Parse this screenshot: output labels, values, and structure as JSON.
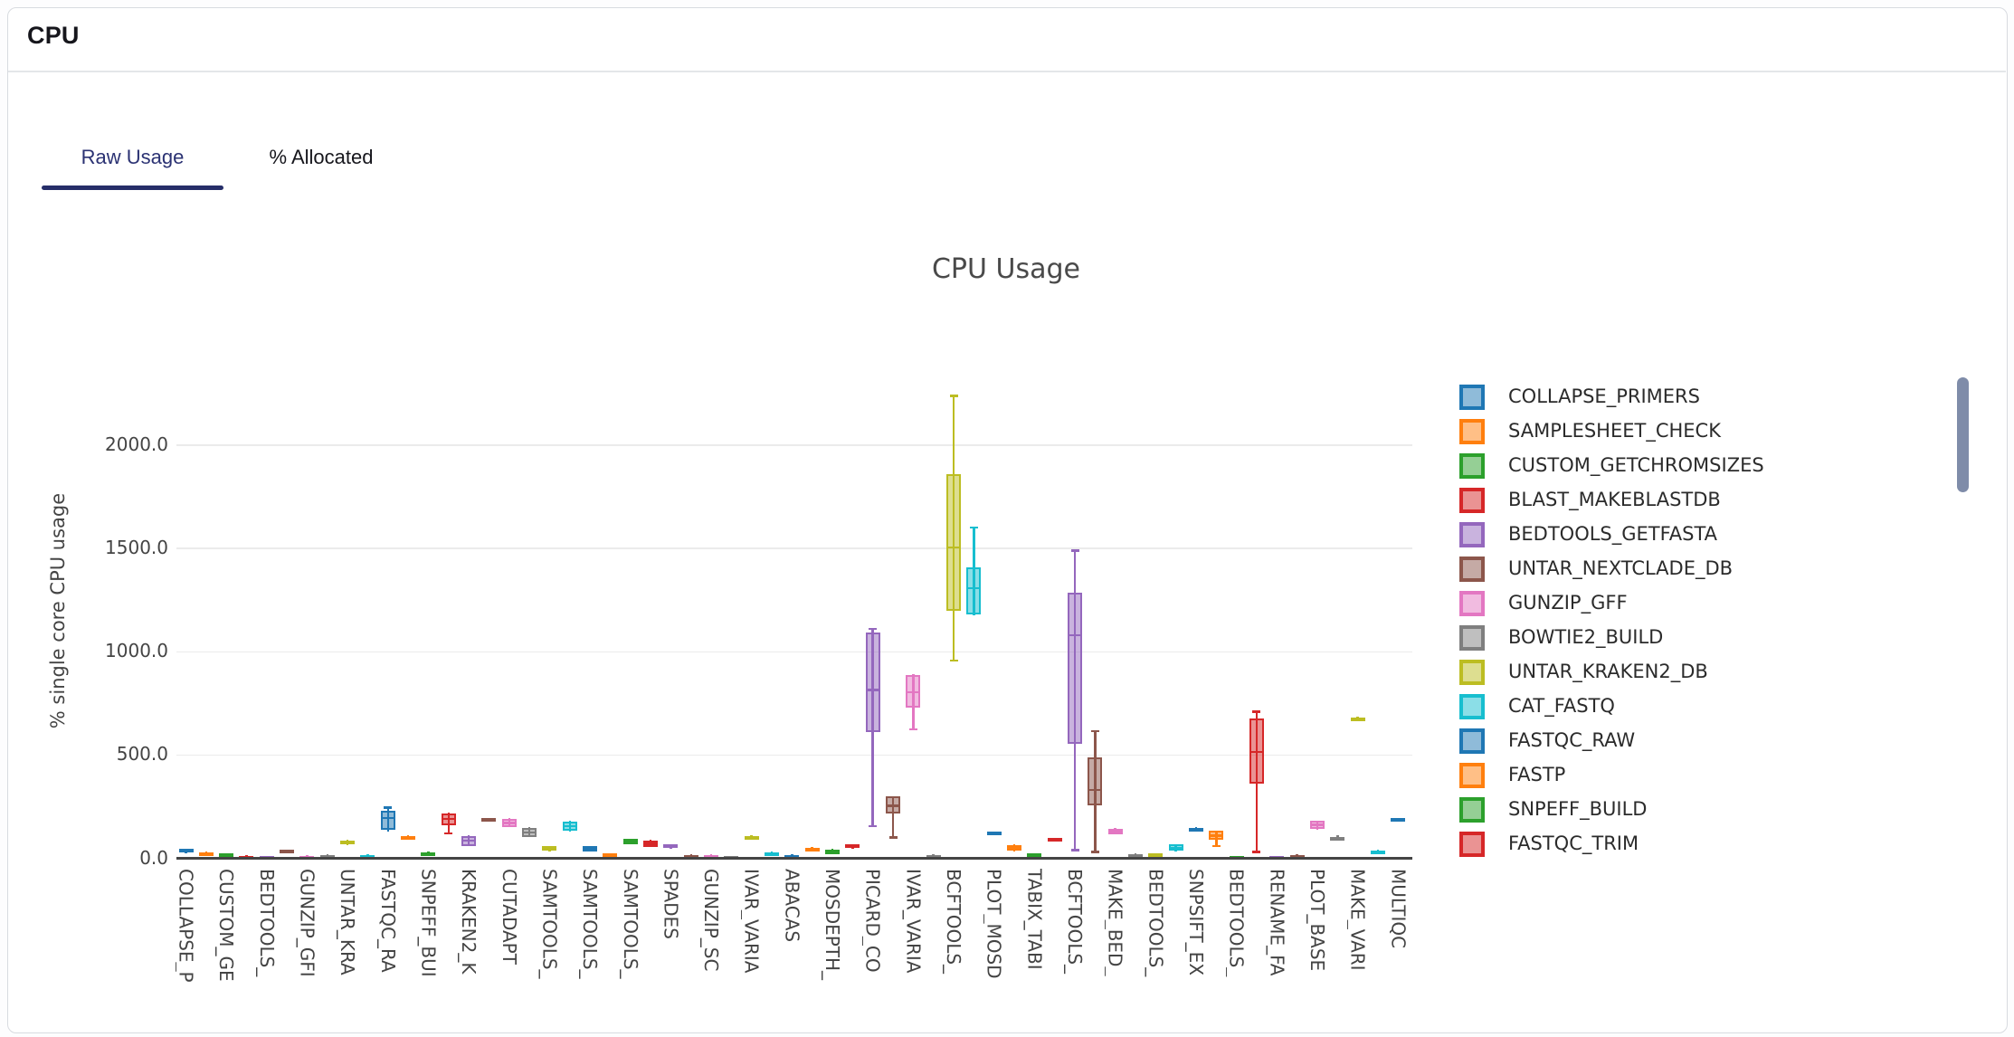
{
  "card": {
    "title": "CPU"
  },
  "tabs": [
    {
      "label": "Raw Usage",
      "active": true
    },
    {
      "label": "% Allocated",
      "active": false
    }
  ],
  "accent_color": "#262e69",
  "chart_data": {
    "type": "box",
    "title": "CPU Usage",
    "ylabel": "% single core CPU usage",
    "ylim": [
      0,
      2500
    ],
    "grid": true,
    "legend_position": "right",
    "yticks": {
      "values": [
        0,
        500,
        1000,
        1500,
        2000
      ],
      "labels": [
        "0.0",
        "500.0",
        "1000.0",
        "1500.0",
        "2000.0"
      ]
    },
    "x_tick_labels": [
      "COLLAPSE_P",
      "CUSTOM_GE",
      "BEDTOOLS_",
      "GUNZIP_GFI",
      "UNTAR_KRA",
      "FASTQC_RA",
      "SNPEFF_BUI",
      "KRAKEN2_K",
      "CUTADAPT",
      "SAMTOOLS_",
      "SAMTOOLS_",
      "SAMTOOLS_",
      "SPADES",
      "GUNZIP_SC",
      "IVAR_VARIA",
      "ABACAS",
      "MOSDEPTH_",
      "PICARD_CO",
      "IVAR_VARIA",
      "BCFTOOLS_",
      "PLOT_MOSD",
      "TABIX_TABI",
      "BCFTOOLS_",
      "MAKE_BED_",
      "BEDTOOLS_",
      "SNPSIFT_EX",
      "BEDTOOLS_",
      "RENAME_FA",
      "PLOT_BASE",
      "MAKE_VARI",
      "MULTIQC"
    ],
    "palette": [
      "#1f77b4",
      "#ff7f0e",
      "#2ca02c",
      "#d62728",
      "#9467bd",
      "#8c564b",
      "#e377c2",
      "#7f7f7f",
      "#bcbd22",
      "#17becf"
    ],
    "legend": [
      {
        "label": "COLLAPSE_PRIMERS",
        "color": "#1f77b4"
      },
      {
        "label": "SAMPLESHEET_CHECK",
        "color": "#ff7f0e"
      },
      {
        "label": "CUSTOM_GETCHROMSIZES",
        "color": "#2ca02c"
      },
      {
        "label": "BLAST_MAKEBLASTDB",
        "color": "#d62728"
      },
      {
        "label": "BEDTOOLS_GETFASTA",
        "color": "#9467bd"
      },
      {
        "label": "UNTAR_NEXTCLADE_DB",
        "color": "#8c564b"
      },
      {
        "label": "GUNZIP_GFF",
        "color": "#e377c2"
      },
      {
        "label": "BOWTIE2_BUILD",
        "color": "#7f7f7f"
      },
      {
        "label": "UNTAR_KRAKEN2_DB",
        "color": "#bcbd22"
      },
      {
        "label": "CAT_FASTQ",
        "color": "#17becf"
      },
      {
        "label": "FASTQC_RAW",
        "color": "#1f77b4"
      },
      {
        "label": "FASTP",
        "color": "#ff7f0e"
      },
      {
        "label": "SNPEFF_BUILD",
        "color": "#2ca02c"
      },
      {
        "label": "FASTQC_TRIM",
        "color": "#d62728"
      }
    ],
    "series": [
      {
        "color": "#1f77b4",
        "stats": [
          25,
          27,
          35,
          44,
          46
        ]
      },
      {
        "color": "#ff7f0e",
        "stats": [
          13,
          15,
          22,
          30,
          31
        ]
      },
      {
        "color": "#2ca02c",
        "stats": [
          8,
          10,
          15,
          22,
          23
        ]
      },
      {
        "color": "#d62728",
        "stats": [
          0,
          1,
          6,
          13,
          14
        ]
      },
      {
        "color": "#9467bd",
        "stats": [
          0,
          1,
          4,
          9,
          10
        ]
      },
      {
        "color": "#8c564b",
        "stats": [
          22,
          24,
          31,
          40,
          41
        ]
      },
      {
        "color": "#e377c2",
        "stats": [
          2,
          3,
          7,
          13,
          14
        ]
      },
      {
        "color": "#7f7f7f",
        "stats": [
          3,
          5,
          10,
          17,
          18
        ]
      },
      {
        "color": "#bcbd22",
        "stats": [
          64,
          66,
          75,
          87,
          89
        ]
      },
      {
        "color": "#17becf",
        "stats": [
          0,
          2,
          8,
          16,
          18
        ]
      },
      {
        "color": "#1f77b4",
        "stats": [
          130,
          136,
          195,
          230,
          245
        ]
      },
      {
        "color": "#ff7f0e",
        "stats": [
          92,
          94,
          100,
          109,
          110
        ]
      },
      {
        "color": "#2ca02c",
        "stats": [
          18,
          19,
          24,
          30,
          31
        ]
      },
      {
        "color": "#d62728",
        "stats": [
          120,
          158,
          190,
          219,
          220
        ]
      },
      {
        "color": "#9467bd",
        "stats": [
          57,
          60,
          85,
          108,
          110
        ]
      },
      {
        "color": "#8c564b",
        "stats": [
          184,
          186,
          190,
          196,
          197
        ]
      },
      {
        "color": "#e377c2",
        "stats": [
          149,
          152,
          170,
          191,
          193
        ]
      },
      {
        "color": "#7f7f7f",
        "stats": [
          101,
          104,
          125,
          147,
          149
        ]
      },
      {
        "color": "#bcbd22",
        "stats": [
          35,
          38,
          48,
          59,
          61
        ]
      },
      {
        "color": "#17becf",
        "stats": [
          131,
          134,
          155,
          178,
          180
        ]
      },
      {
        "color": "#1f77b4",
        "stats": [
          31,
          34,
          45,
          59,
          61
        ]
      },
      {
        "color": "#ff7f0e",
        "stats": [
          4,
          7,
          15,
          24,
          26
        ]
      },
      {
        "color": "#2ca02c",
        "stats": [
          66,
          69,
          80,
          94,
          96
        ]
      },
      {
        "color": "#d62728",
        "stats": [
          53,
          56,
          70,
          86,
          88
        ]
      },
      {
        "color": "#9467bd",
        "stats": [
          48,
          50,
          58,
          68,
          70
        ]
      },
      {
        "color": "#8c564b",
        "stats": [
          4,
          6,
          11,
          16,
          18
        ]
      },
      {
        "color": "#e377c2",
        "stats": [
          4,
          6,
          11,
          16,
          18
        ]
      },
      {
        "color": "#7f7f7f",
        "stats": [
          0,
          2,
          6,
          11,
          13
        ]
      },
      {
        "color": "#bcbd22",
        "stats": [
          92,
          94,
          100,
          108,
          110
        ]
      },
      {
        "color": "#17becf",
        "stats": [
          9,
          12,
          20,
          29,
          31
        ]
      },
      {
        "color": "#1f77b4",
        "stats": [
          0,
          2,
          8,
          16,
          18
        ]
      },
      {
        "color": "#ff7f0e",
        "stats": [
          31,
          33,
          40,
          51,
          53
        ]
      },
      {
        "color": "#2ca02c",
        "stats": [
          18,
          20,
          30,
          42,
          44
        ]
      },
      {
        "color": "#d62728",
        "stats": [
          48,
          50,
          58,
          68,
          70
        ]
      },
      {
        "color": "#9467bd",
        "stats": [
          155,
          610,
          815,
          1095,
          1111
        ]
      },
      {
        "color": "#8c564b",
        "stats": [
          100,
          215,
          255,
          300,
          302
        ]
      },
      {
        "color": "#e377c2",
        "stats": [
          625,
          730,
          805,
          888,
          890
        ]
      },
      {
        "color": "#7f7f7f",
        "stats": [
          4,
          6,
          10,
          16,
          18
        ]
      },
      {
        "color": "#bcbd22",
        "stats": [
          958,
          1198,
          1505,
          1859,
          2240
        ]
      },
      {
        "color": "#17becf",
        "stats": [
          1177,
          1180,
          1308,
          1409,
          1601
        ]
      },
      {
        "color": "#1f77b4",
        "stats": [
          118,
          120,
          125,
          130,
          131
        ]
      },
      {
        "color": "#ff7f0e",
        "stats": [
          35,
          38,
          48,
          63,
          66
        ]
      },
      {
        "color": "#2ca02c",
        "stats": [
          0,
          2,
          10,
          22,
          26
        ]
      },
      {
        "color": "#d62728",
        "stats": [
          83,
          85,
          90,
          98,
          100
        ]
      },
      {
        "color": "#9467bd",
        "stats": [
          40,
          555,
          1080,
          1285,
          1490
        ]
      },
      {
        "color": "#8c564b",
        "stats": [
          30,
          255,
          330,
          490,
          615
        ]
      },
      {
        "color": "#e377c2",
        "stats": [
          114,
          117,
          130,
          143,
          145
        ]
      },
      {
        "color": "#7f7f7f",
        "stats": [
          0,
          2,
          8,
          18,
          22
        ]
      },
      {
        "color": "#bcbd22",
        "stats": [
          0,
          2,
          10,
          22,
          26
        ]
      },
      {
        "color": "#17becf",
        "stats": [
          35,
          38,
          50,
          66,
          70
        ]
      },
      {
        "color": "#1f77b4",
        "stats": [
          131,
          134,
          140,
          147,
          149
        ]
      },
      {
        "color": "#ff7f0e",
        "stats": [
          60,
          90,
          110,
          133,
          135
        ]
      },
      {
        "color": "#2ca02c",
        "stats": [
          0,
          1,
          5,
          12,
          13
        ]
      },
      {
        "color": "#d62728",
        "stats": [
          30,
          360,
          515,
          675,
          710
        ]
      },
      {
        "color": "#9467bd",
        "stats": [
          0,
          1,
          5,
          12,
          13
        ]
      },
      {
        "color": "#8c564b",
        "stats": [
          4,
          6,
          10,
          16,
          18
        ]
      },
      {
        "color": "#e377c2",
        "stats": [
          140,
          143,
          163,
          181,
          184
        ]
      },
      {
        "color": "#7f7f7f",
        "stats": [
          88,
          90,
          95,
          105,
          110
        ]
      },
      {
        "color": "#bcbd22",
        "stats": [
          667,
          670,
          675,
          682,
          684
        ]
      },
      {
        "color": "#17becf",
        "stats": [
          26,
          28,
          32,
          38,
          40
        ]
      },
      {
        "color": "#1f77b4",
        "stats": [
          184,
          186,
          190,
          196,
          197
        ]
      }
    ]
  }
}
